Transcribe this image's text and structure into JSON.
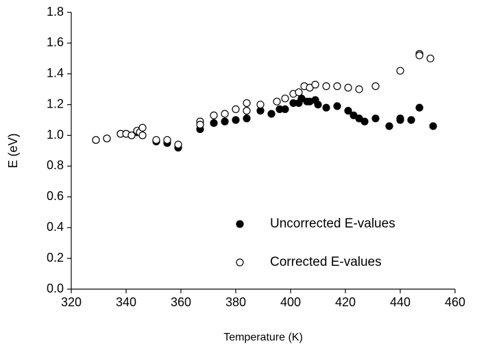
{
  "chart_data": {
    "type": "scatter",
    "x_label": "Temperature (K)",
    "y_label": "E (eV)",
    "xlim": [
      320,
      460
    ],
    "xticks": [
      320,
      340,
      360,
      380,
      400,
      420,
      440,
      460
    ],
    "ylim": [
      0,
      1.8
    ],
    "yticks": [
      {
        "value": 0,
        "label": "0.0"
      },
      0.2,
      0.4,
      0.6,
      0.8,
      {
        "value": 1,
        "label": "1.0"
      },
      1.2,
      1.4,
      1.6,
      1.8
    ],
    "grid": false,
    "legend": "lower right",
    "series": [
      {
        "name": "Uncorrected E-values",
        "color": "#000000",
        "filled": true,
        "x": [
          329,
          333,
          338,
          340,
          342,
          344,
          346,
          351,
          355,
          359,
          367,
          372,
          376,
          380,
          384,
          389,
          393,
          396,
          398,
          401,
          403,
          404,
          406,
          407,
          409,
          410,
          413,
          417,
          421,
          423,
          425,
          427,
          431,
          436,
          440,
          440,
          444,
          447,
          452
        ],
        "values": [
          0.97,
          0.98,
          1.01,
          1.01,
          1.0,
          1.02,
          1.0,
          0.96,
          0.95,
          0.92,
          1.04,
          1.08,
          1.09,
          1.1,
          1.11,
          1.16,
          1.14,
          1.17,
          1.17,
          1.21,
          1.21,
          1.24,
          1.22,
          1.22,
          1.23,
          1.2,
          1.18,
          1.19,
          1.16,
          1.13,
          1.11,
          1.09,
          1.11,
          1.06,
          1.1,
          1.11,
          1.1,
          1.18,
          1.06
        ]
      },
      {
        "name": "Corrected E-values",
        "color": "#000000",
        "filled": false,
        "x": [
          329,
          333,
          338,
          340,
          342,
          344,
          345,
          346,
          346,
          351,
          355,
          359,
          367,
          367,
          372,
          376,
          380,
          384,
          384,
          389,
          395,
          398,
          401,
          403,
          405,
          407,
          409,
          413,
          417,
          421,
          425,
          431,
          440,
          447,
          447,
          451
        ],
        "values": [
          0.97,
          0.98,
          1.01,
          1.01,
          1.0,
          1.03,
          1.02,
          1.05,
          1.0,
          0.97,
          0.97,
          0.94,
          1.09,
          1.07,
          1.13,
          1.14,
          1.17,
          1.21,
          1.16,
          1.2,
          1.22,
          1.24,
          1.27,
          1.28,
          1.32,
          1.31,
          1.33,
          1.32,
          1.32,
          1.31,
          1.3,
          1.32,
          1.42,
          1.53,
          1.52,
          1.5
        ]
      }
    ]
  }
}
